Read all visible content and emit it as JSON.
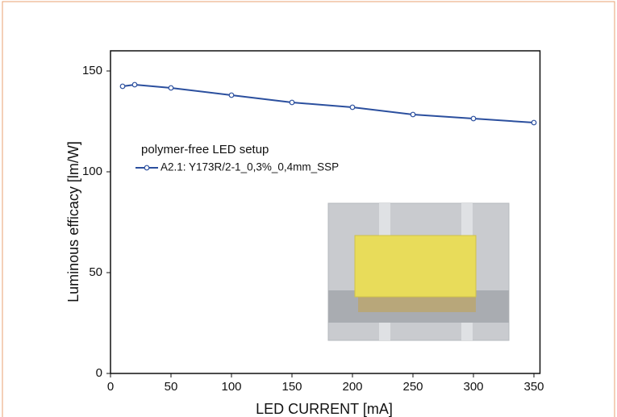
{
  "chart_data": {
    "type": "line",
    "xlabel": "LED CURRENT [mA]",
    "ylabel": "Luminous efficacy [lm/W]",
    "legend_title": "polymer-free LED setup",
    "x": [
      10,
      20,
      50,
      100,
      150,
      200,
      250,
      300,
      350
    ],
    "series": [
      {
        "name": "A2.1: Y173R/2-1_0,3%_0,4mm_SSP",
        "color": "#2b4f9e",
        "values": [
          142.4,
          143.2,
          141.6,
          138,
          134.4,
          132,
          128.4,
          126.4,
          124.4
        ]
      }
    ],
    "xlim": [
      0,
      355
    ],
    "ylim": [
      0,
      160
    ],
    "xticks": [
      0,
      50,
      100,
      150,
      200,
      250,
      300,
      350
    ],
    "yticks": [
      0,
      50,
      100,
      150
    ]
  }
}
